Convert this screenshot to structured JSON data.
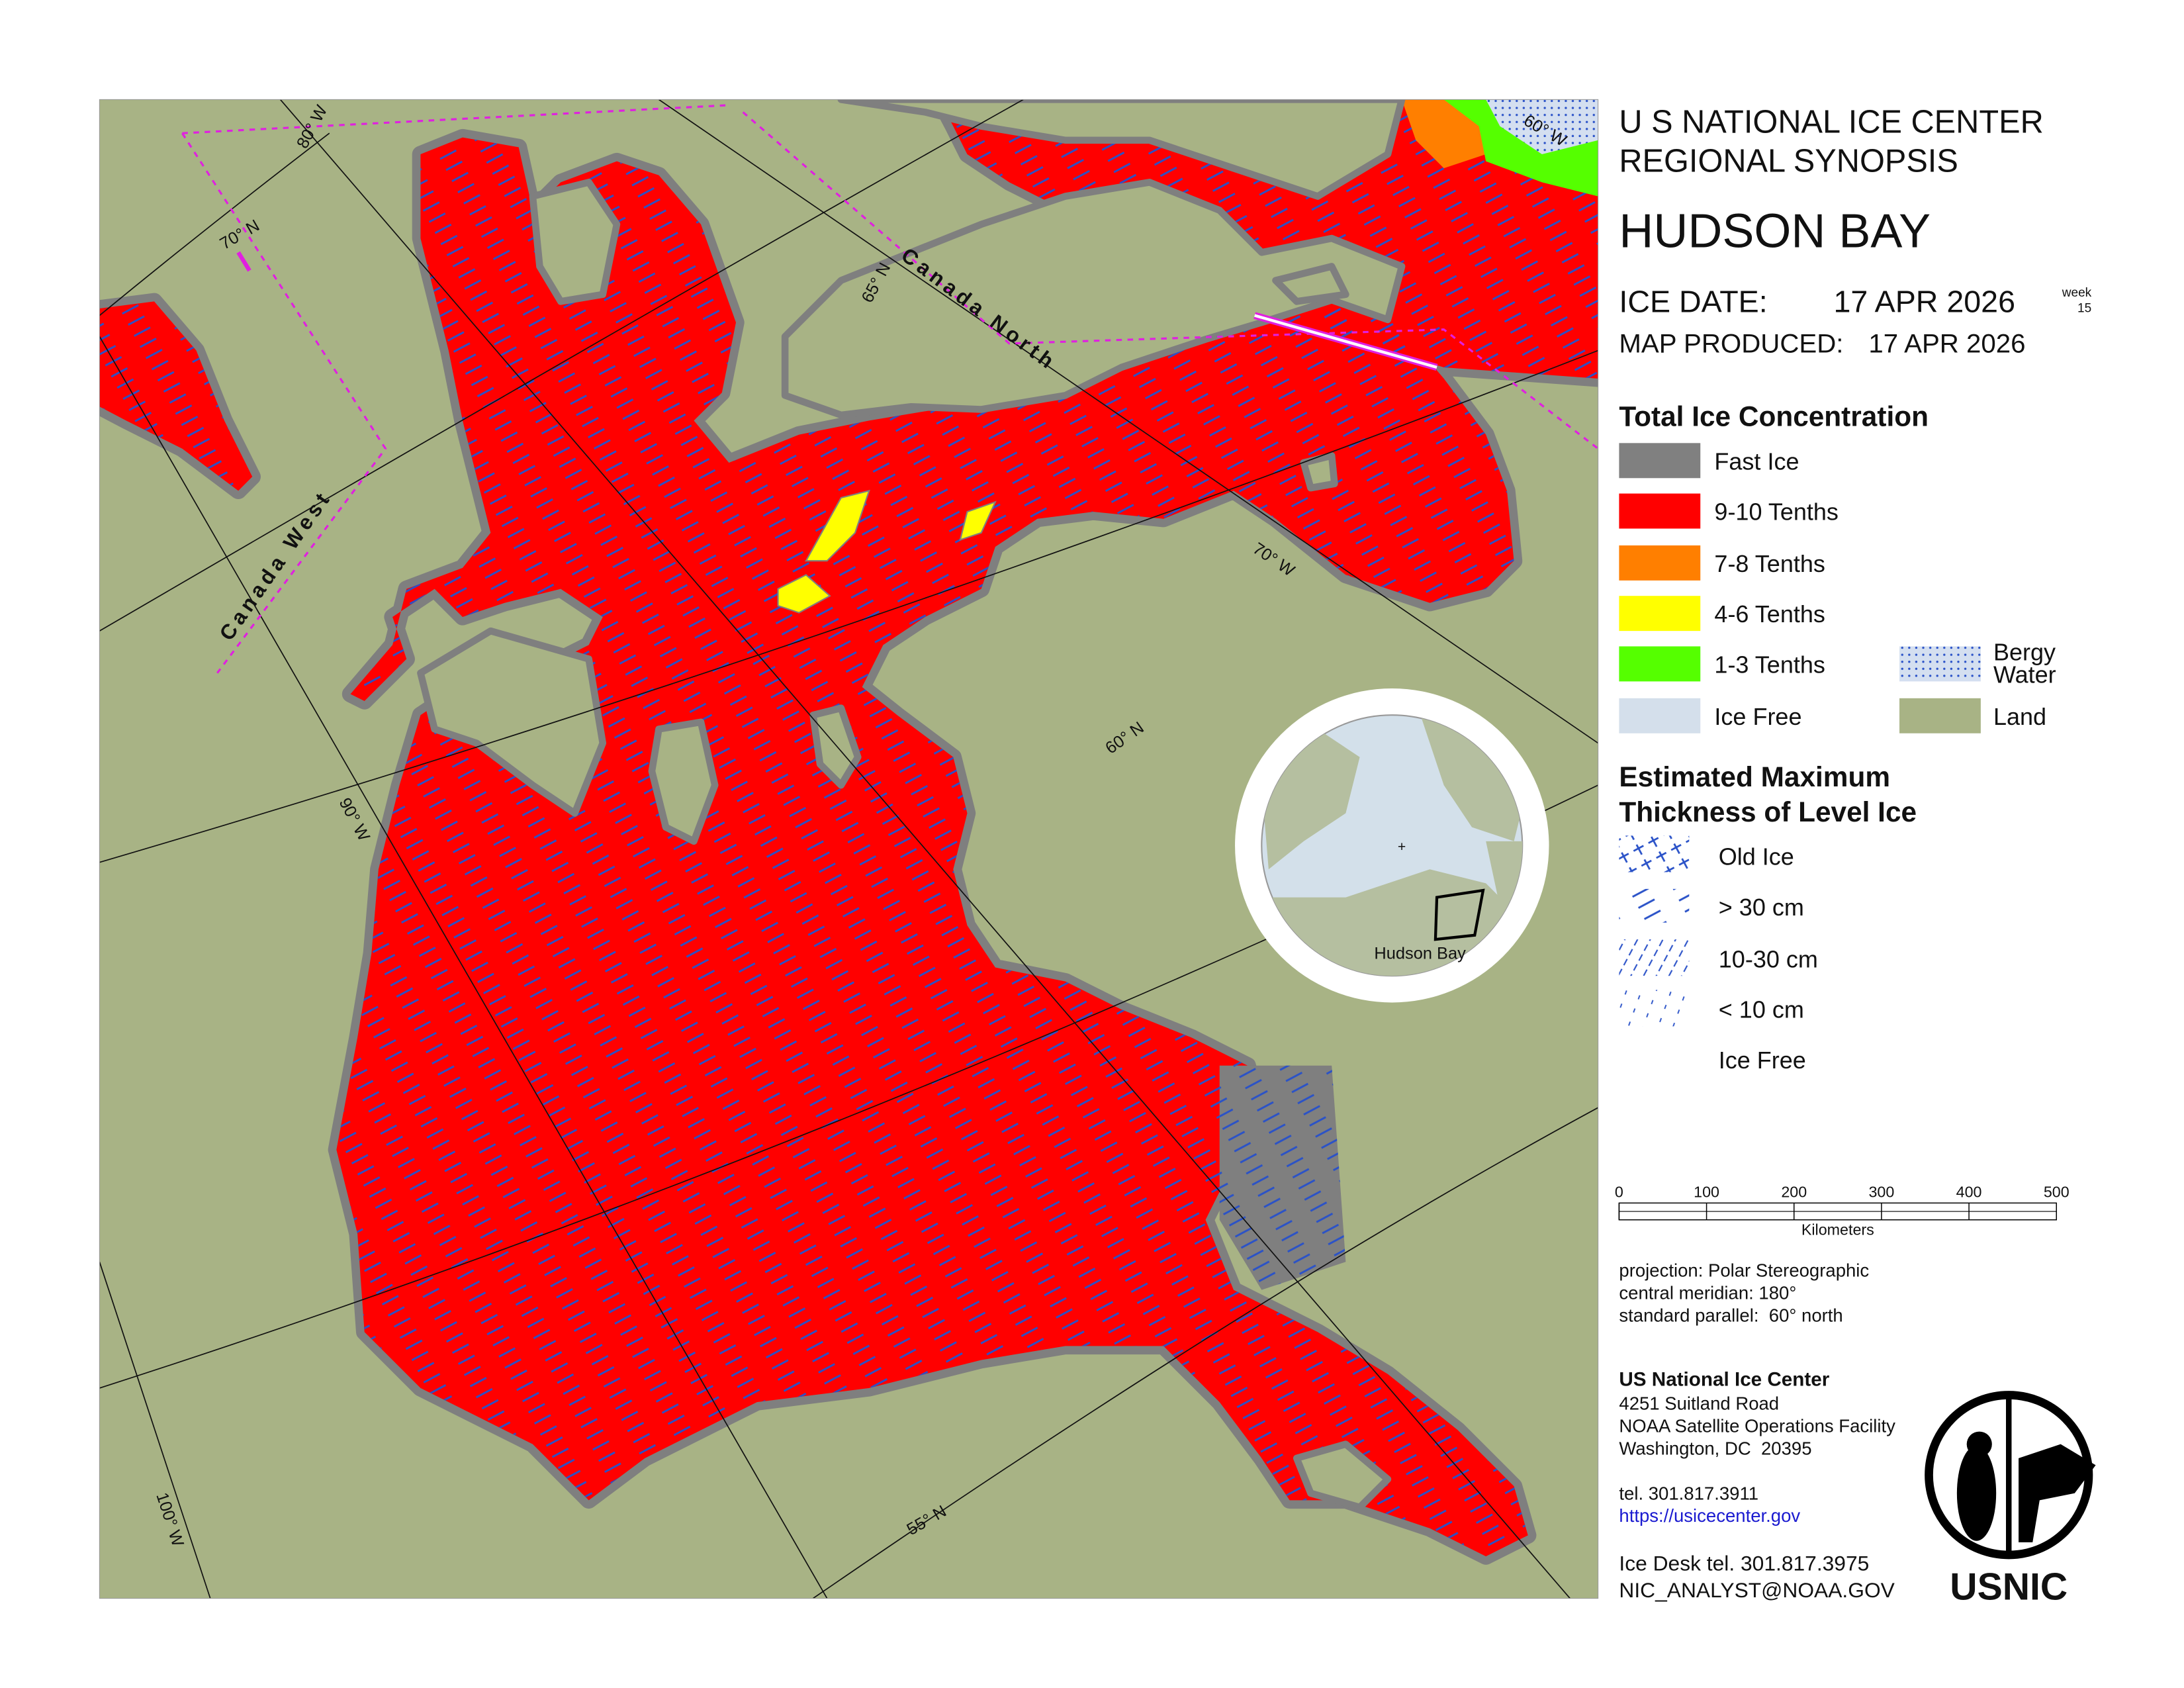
{
  "header": {
    "agency": "U S NATIONAL ICE CENTER",
    "product": "REGIONAL SYNOPSIS",
    "region": "HUDSON BAY",
    "ice_date_label": "ICE DATE:",
    "ice_date": "17 APR 2026",
    "week_label": "week",
    "week": 15,
    "map_produced_label": "MAP PRODUCED:",
    "map_produced": "17 APR 2026"
  },
  "legend": {
    "concentration_title": "Total Ice Concentration",
    "concentration": [
      "Fast Ice",
      "9-10 Tenths",
      "7-8 Tenths",
      "4-6 Tenths",
      "1-3 Tenths",
      "Ice Free"
    ],
    "bergy_water": [
      "Bergy",
      "Water"
    ],
    "land": "Land",
    "thickness_title": [
      "Estimated Maximum",
      "Thickness of Level Ice"
    ],
    "thickness": [
      "Old Ice",
      "> 30 cm",
      "10-30 cm",
      "< 10 cm",
      "Ice Free"
    ]
  },
  "scale_bar": {
    "ticks": [
      0,
      100,
      200,
      300,
      400,
      500
    ],
    "unit": "Kilometers"
  },
  "projection": [
    "projection: Polar Stereographic",
    "central meridian: 180°",
    "standard parallel:  60° north"
  ],
  "contact": {
    "name": "US National Ice Center",
    "address": [
      "4251 Suitland Road",
      "NOAA Satellite Operations Facility",
      "Washington, DC  20395"
    ],
    "tel": "tel. 301.817.3911",
    "url": "https://usicecenter.gov",
    "ice_desk": "Ice Desk tel. 301.817.3975",
    "email": "NIC_ANALYST@NOAA.GOV"
  },
  "logo": "USNIC",
  "map": {
    "graticule_labels": [
      "80° W",
      "70° N",
      "65° N",
      "70° W",
      "60° N",
      "90° W",
      "100° W",
      "55° N",
      "60° W"
    ],
    "regions": [
      "Canada North",
      "Canada West"
    ],
    "inset_label": "Hudson Bay"
  }
}
